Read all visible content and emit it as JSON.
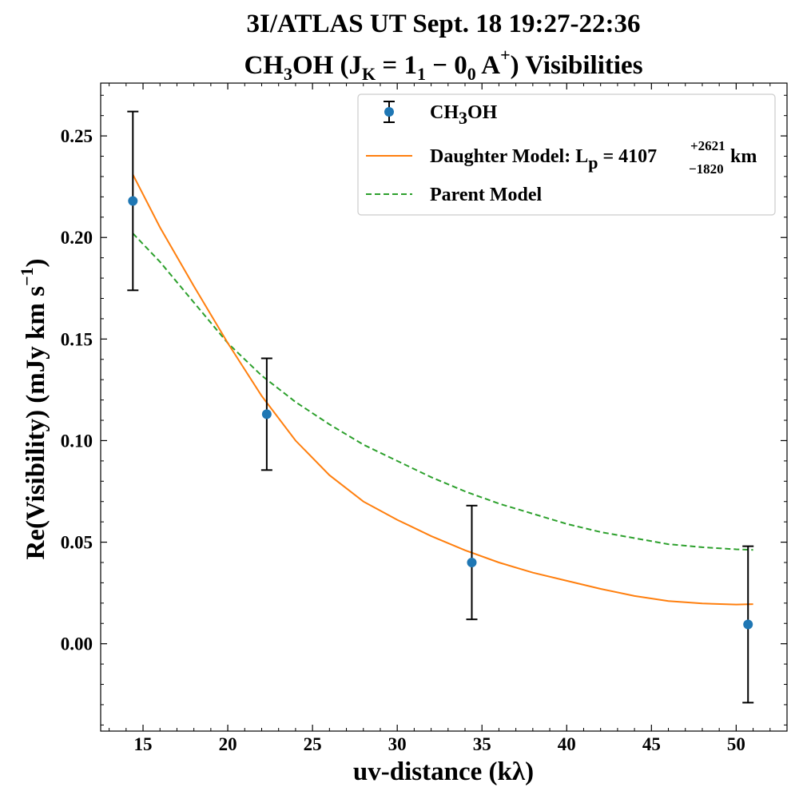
{
  "chart_data": {
    "type": "scatter",
    "title_line1": "3I/ATLAS  UT Sept. 18 19:27-22:36",
    "title_line2": {
      "molecule_main": "CH",
      "molecule_sub": "3",
      "molecule_end": "OH",
      "open": " (J",
      "j_sub": "K",
      "eq": " = 1",
      "one_sub": "1",
      "minus": " − 0",
      "zero_sub": "0",
      "a": " A",
      "a_sup": "+",
      "close": ") Visibilities"
    },
    "xlabel": "uv-distance (kλ)",
    "ylabel_main": "Re(Visibility) (mJy km s",
    "ylabel_sup": "−1",
    "ylabel_close": ")",
    "xlim": [
      12.5,
      53.0
    ],
    "ylim": [
      -0.043,
      0.276
    ],
    "xticks": [
      15,
      20,
      25,
      30,
      35,
      40,
      45,
      50
    ],
    "xtick_labels": [
      "15",
      "20",
      "25",
      "30",
      "35",
      "40",
      "45",
      "50"
    ],
    "yticks": [
      0.0,
      0.05,
      0.1,
      0.15,
      0.2,
      0.25
    ],
    "ytick_labels": [
      "0.00",
      "0.05",
      "0.10",
      "0.15",
      "0.20",
      "0.25"
    ],
    "data_points": {
      "name": "CH3OH",
      "color": "#1f77b4",
      "x": [
        14.4,
        22.3,
        34.4,
        50.7
      ],
      "y": [
        0.218,
        0.113,
        0.04,
        0.0095
      ],
      "yerr": [
        0.044,
        0.0275,
        0.028,
        0.0385
      ]
    },
    "daughter_model": {
      "color": "#ff7f0e",
      "x": [
        14.4,
        16,
        18,
        20,
        22,
        24,
        26,
        28,
        30,
        32,
        34,
        36,
        38,
        40,
        42,
        44,
        46,
        48,
        50,
        51
      ],
      "y": [
        0.231,
        0.205,
        0.176,
        0.148,
        0.122,
        0.1,
        0.083,
        0.07,
        0.061,
        0.053,
        0.046,
        0.04,
        0.035,
        0.031,
        0.027,
        0.0235,
        0.021,
        0.0198,
        0.0193,
        0.0195
      ]
    },
    "parent_model": {
      "color": "#2ca02c",
      "x": [
        14.4,
        16,
        18,
        20,
        22,
        24,
        26,
        28,
        30,
        32,
        34,
        36,
        38,
        40,
        42,
        44,
        46,
        48,
        50,
        51
      ],
      "y": [
        0.202,
        0.188,
        0.168,
        0.148,
        0.132,
        0.119,
        0.108,
        0.098,
        0.09,
        0.082,
        0.075,
        0.069,
        0.064,
        0.059,
        0.055,
        0.052,
        0.049,
        0.0475,
        0.0465,
        0.0462
      ]
    },
    "legend": {
      "position": "top-right",
      "item1_main": "CH",
      "item1_sub": "3",
      "item1_end": "OH",
      "item2_text": "Daughter Model: L",
      "item2_sub": "p",
      "item2_eq": " = 4107",
      "item2_sup": "+2621",
      "item2_low": "−1820",
      "item2_unit": " km",
      "item3_text": "Parent Model"
    }
  }
}
